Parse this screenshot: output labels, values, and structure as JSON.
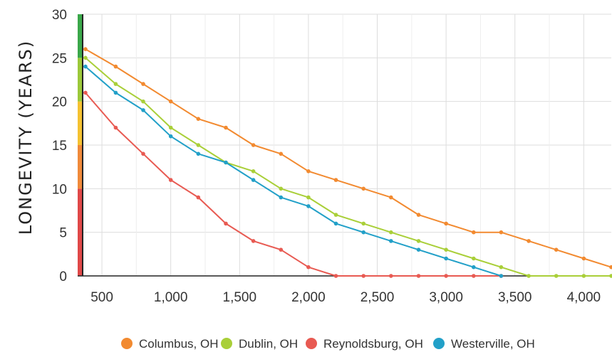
{
  "chart_data": {
    "type": "line",
    "title": "",
    "xlabel": "",
    "ylabel": "LONGEVITY (YEARS)",
    "xlim": [
      360,
      4200
    ],
    "ylim": [
      0,
      30
    ],
    "x_ticks": [
      500,
      1000,
      1500,
      2000,
      2500,
      3000,
      3500,
      4000
    ],
    "x_tick_labels": [
      "500",
      "1,000",
      "1,500",
      "2,000",
      "2,500",
      "3,000",
      "3,500",
      "4,000"
    ],
    "y_ticks": [
      0,
      5,
      10,
      15,
      20,
      25,
      30
    ],
    "y_tick_labels": [
      "0",
      "5",
      "10",
      "15",
      "20",
      "25",
      "30"
    ],
    "grid": true,
    "legend_position": "bottom",
    "y_axis_bands": [
      {
        "from": 0,
        "to": 10,
        "color": "#e04848"
      },
      {
        "from": 10,
        "to": 15,
        "color": "#f08a3a"
      },
      {
        "from": 15,
        "to": 20,
        "color": "#f5c232"
      },
      {
        "from": 20,
        "to": 25,
        "color": "#9cc93a"
      },
      {
        "from": 25,
        "to": 30,
        "color": "#3aa84a"
      }
    ],
    "series": [
      {
        "name": "Columbus, OH",
        "color": "#f28a30",
        "x": [
          380,
          600,
          800,
          1000,
          1200,
          1400,
          1600,
          1800,
          2000,
          2200,
          2400,
          2600,
          2800,
          3000,
          3200,
          3400,
          3600,
          3800,
          4000,
          4200
        ],
        "y": [
          26,
          24,
          22,
          20,
          18,
          17,
          15,
          14,
          12,
          11,
          10,
          9,
          7,
          6,
          5,
          5,
          4,
          3,
          2,
          1
        ]
      },
      {
        "name": "Dublin, OH",
        "color": "#a9cf38",
        "x": [
          380,
          600,
          800,
          1000,
          1200,
          1400,
          1600,
          1800,
          2000,
          2200,
          2400,
          2600,
          2800,
          3000,
          3200,
          3400,
          3600,
          3800,
          4000,
          4200
        ],
        "y": [
          25,
          22,
          20,
          17,
          15,
          13,
          12,
          10,
          9,
          7,
          6,
          5,
          4,
          3,
          2,
          1,
          0,
          0,
          0,
          0
        ]
      },
      {
        "name": "Reynoldsburg, OH",
        "color": "#e85a52",
        "x": [
          380,
          600,
          800,
          1000,
          1200,
          1400,
          1600,
          1800,
          2000,
          2200,
          2400,
          2600,
          2800,
          3000,
          3200,
          3400
        ],
        "y": [
          21,
          17,
          14,
          11,
          9,
          6,
          4,
          3,
          1,
          0,
          0,
          0,
          0,
          0,
          0,
          0
        ]
      },
      {
        "name": "Westerville, OH",
        "color": "#22a0c8",
        "x": [
          380,
          600,
          800,
          1000,
          1200,
          1400,
          1600,
          1800,
          2000,
          2200,
          2400,
          2600,
          2800,
          3000,
          3200,
          3400
        ],
        "y": [
          24,
          21,
          19,
          16,
          14,
          13,
          11,
          9,
          8,
          6,
          5,
          4,
          3,
          2,
          1,
          0
        ]
      }
    ]
  }
}
